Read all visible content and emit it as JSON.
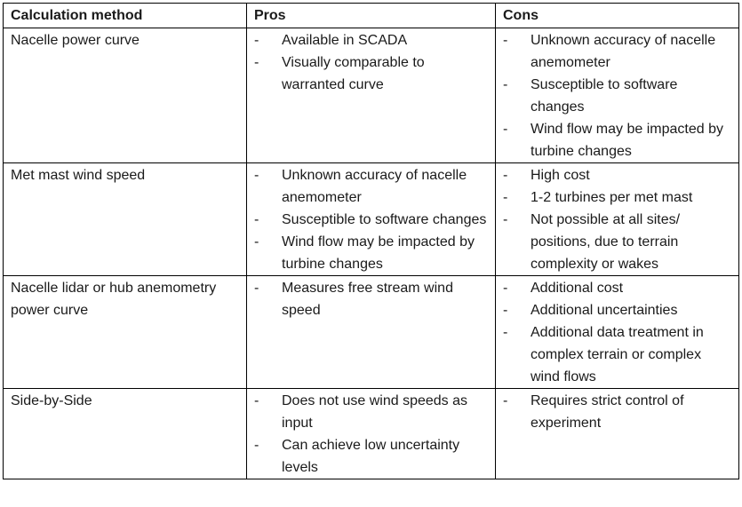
{
  "table": {
    "headers": [
      "Calculation method",
      "Pros",
      "Cons"
    ],
    "bullet_marker": "-",
    "rows": [
      {
        "method": "Nacelle power curve",
        "pros": [
          "Available in SCADA",
          "Visually comparable to warranted curve"
        ],
        "cons": [
          "Unknown accuracy of nacelle anemometer",
          "Susceptible to software changes",
          "Wind flow may be impacted by turbine changes"
        ]
      },
      {
        "method": "Met mast wind speed",
        "pros": [
          "Unknown accuracy of nacelle anemometer",
          "Susceptible to software changes",
          "Wind flow may be impacted by turbine changes"
        ],
        "cons": [
          "High cost",
          "1-2 turbines per met mast",
          "Not possible at all sites/ positions, due to terrain complexity or wakes"
        ]
      },
      {
        "method": "Nacelle lidar or hub anemometry power curve",
        "pros": [
          "Measures free stream wind speed"
        ],
        "cons": [
          "Additional cost",
          "Additional uncertainties",
          "Additional data treatment in complex terrain or complex wind flows"
        ]
      },
      {
        "method": "Side-by-Side",
        "pros": [
          "Does not use wind speeds as input",
          "Can achieve low uncertainty levels"
        ],
        "cons": [
          "Requires strict control of experiment"
        ]
      }
    ]
  }
}
